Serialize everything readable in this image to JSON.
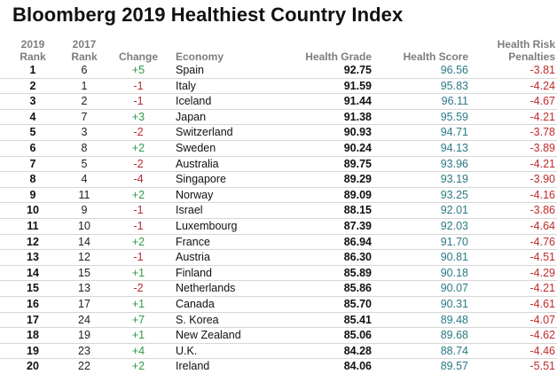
{
  "title": "Bloomberg 2019 Healthiest Country Index",
  "headers": {
    "rank2019": [
      "2019",
      "Rank"
    ],
    "rank2017": [
      "2017",
      "Rank"
    ],
    "change": "Change",
    "economy": "Economy",
    "grade": "Health Grade",
    "score": "Health Score",
    "penalties": [
      "Health Risk",
      "Penalties"
    ]
  },
  "colors": {
    "positive": "#2f9a48",
    "negative": "#b8272f",
    "score": "#2b7a86",
    "penalty": "#c02a2a"
  },
  "rows": [
    {
      "rank2019": "1",
      "rank2017": "6",
      "change": "+5",
      "economy": "Spain",
      "grade": "92.75",
      "score": "96.56",
      "penalty": "-3.81"
    },
    {
      "rank2019": "2",
      "rank2017": "1",
      "change": "-1",
      "economy": "Italy",
      "grade": "91.59",
      "score": "95.83",
      "penalty": "-4.24"
    },
    {
      "rank2019": "3",
      "rank2017": "2",
      "change": "-1",
      "economy": "Iceland",
      "grade": "91.44",
      "score": "96.11",
      "penalty": "-4.67"
    },
    {
      "rank2019": "4",
      "rank2017": "7",
      "change": "+3",
      "economy": "Japan",
      "grade": "91.38",
      "score": "95.59",
      "penalty": "-4.21"
    },
    {
      "rank2019": "5",
      "rank2017": "3",
      "change": "-2",
      "economy": "Switzerland",
      "grade": "90.93",
      "score": "94.71",
      "penalty": "-3.78"
    },
    {
      "rank2019": "6",
      "rank2017": "8",
      "change": "+2",
      "economy": "Sweden",
      "grade": "90.24",
      "score": "94.13",
      "penalty": "-3.89"
    },
    {
      "rank2019": "7",
      "rank2017": "5",
      "change": "-2",
      "economy": "Australia",
      "grade": "89.75",
      "score": "93.96",
      "penalty": "-4.21"
    },
    {
      "rank2019": "8",
      "rank2017": "4",
      "change": "-4",
      "economy": "Singapore",
      "grade": "89.29",
      "score": "93.19",
      "penalty": "-3.90"
    },
    {
      "rank2019": "9",
      "rank2017": "11",
      "change": "+2",
      "economy": "Norway",
      "grade": "89.09",
      "score": "93.25",
      "penalty": "-4.16"
    },
    {
      "rank2019": "10",
      "rank2017": "9",
      "change": "-1",
      "economy": "Israel",
      "grade": "88.15",
      "score": "92.01",
      "penalty": "-3.86"
    },
    {
      "rank2019": "11",
      "rank2017": "10",
      "change": "-1",
      "economy": "Luxembourg",
      "grade": "87.39",
      "score": "92.03",
      "penalty": "-4.64"
    },
    {
      "rank2019": "12",
      "rank2017": "14",
      "change": "+2",
      "economy": "France",
      "grade": "86.94",
      "score": "91.70",
      "penalty": "-4.76"
    },
    {
      "rank2019": "13",
      "rank2017": "12",
      "change": "-1",
      "economy": "Austria",
      "grade": "86.30",
      "score": "90.81",
      "penalty": "-4.51"
    },
    {
      "rank2019": "14",
      "rank2017": "15",
      "change": "+1",
      "economy": "Finland",
      "grade": "85.89",
      "score": "90.18",
      "penalty": "-4.29"
    },
    {
      "rank2019": "15",
      "rank2017": "13",
      "change": "-2",
      "economy": "Netherlands",
      "grade": "85.86",
      "score": "90.07",
      "penalty": "-4.21"
    },
    {
      "rank2019": "16",
      "rank2017": "17",
      "change": "+1",
      "economy": "Canada",
      "grade": "85.70",
      "score": "90.31",
      "penalty": "-4.61"
    },
    {
      "rank2019": "17",
      "rank2017": "24",
      "change": "+7",
      "economy": "S. Korea",
      "grade": "85.41",
      "score": "89.48",
      "penalty": "-4.07"
    },
    {
      "rank2019": "18",
      "rank2017": "19",
      "change": "+1",
      "economy": "New Zealand",
      "grade": "85.06",
      "score": "89.68",
      "penalty": "-4.62"
    },
    {
      "rank2019": "19",
      "rank2017": "23",
      "change": "+4",
      "economy": "U.K.",
      "grade": "84.28",
      "score": "88.74",
      "penalty": "-4.46"
    },
    {
      "rank2019": "20",
      "rank2017": "22",
      "change": "+2",
      "economy": "Ireland",
      "grade": "84.06",
      "score": "89.57",
      "penalty": "-5.51"
    }
  ]
}
